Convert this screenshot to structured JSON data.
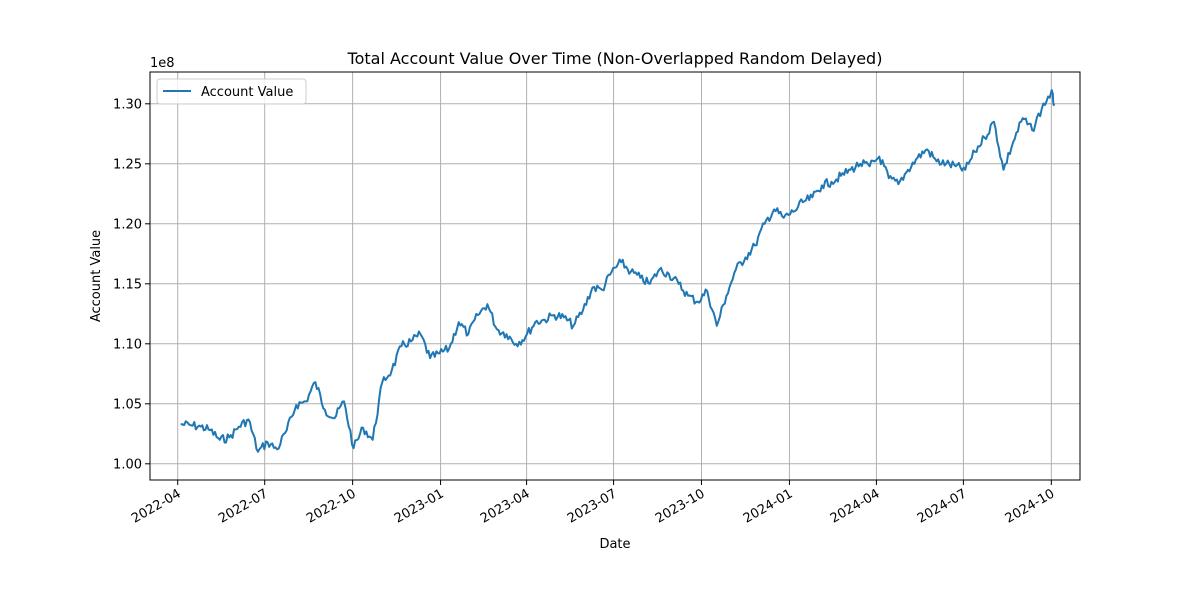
{
  "chart_data": {
    "type": "line",
    "title": "Total Account Value Over Time (Non-Overlapped Random Delayed)",
    "xlabel": "Date",
    "ylabel": "Account Value",
    "y_offset_label": "1e8",
    "y_scale_factor": 100000000,
    "ylim": [
      0.9865,
      1.3265
    ],
    "xlim": [
      "2022-03-03",
      "2024-10-31"
    ],
    "x_ticks": [
      "2022-04",
      "2022-07",
      "2022-10",
      "2023-01",
      "2023-04",
      "2023-07",
      "2023-10",
      "2024-01",
      "2024-04",
      "2024-07",
      "2024-10"
    ],
    "y_ticks": [
      "1.00",
      "1.05",
      "1.10",
      "1.15",
      "1.20",
      "1.25",
      "1.30"
    ],
    "grid": true,
    "legend_position": "top-left",
    "series": [
      {
        "name": "Account Value",
        "color": "#1f77b4",
        "x": [
          "2022-04-04",
          "2022-04-15",
          "2022-04-25",
          "2022-05-05",
          "2022-05-15",
          "2022-05-25",
          "2022-06-04",
          "2022-06-14",
          "2022-06-24",
          "2022-07-04",
          "2022-07-14",
          "2022-07-24",
          "2022-08-03",
          "2022-08-13",
          "2022-08-23",
          "2022-09-02",
          "2022-09-12",
          "2022-09-22",
          "2022-10-02",
          "2022-10-12",
          "2022-10-22",
          "2022-11-01",
          "2022-11-11",
          "2022-11-21",
          "2022-12-01",
          "2022-12-11",
          "2022-12-21",
          "2022-12-31",
          "2023-01-10",
          "2023-01-20",
          "2023-01-30",
          "2023-02-09",
          "2023-02-19",
          "2023-03-01",
          "2023-03-11",
          "2023-03-21",
          "2023-03-31",
          "2023-04-10",
          "2023-04-20",
          "2023-04-30",
          "2023-05-10",
          "2023-05-20",
          "2023-05-30",
          "2023-06-09",
          "2023-06-19",
          "2023-06-29",
          "2023-07-09",
          "2023-07-19",
          "2023-07-29",
          "2023-08-08",
          "2023-08-18",
          "2023-08-28",
          "2023-09-07",
          "2023-09-17",
          "2023-09-27",
          "2023-10-07",
          "2023-10-17",
          "2023-10-27",
          "2023-11-06",
          "2023-11-16",
          "2023-11-26",
          "2023-12-06",
          "2023-12-16",
          "2023-12-26",
          "2024-01-05",
          "2024-01-15",
          "2024-01-25",
          "2024-02-04",
          "2024-02-14",
          "2024-02-24",
          "2024-03-05",
          "2024-03-15",
          "2024-03-25",
          "2024-04-04",
          "2024-04-14",
          "2024-04-24",
          "2024-05-04",
          "2024-05-14",
          "2024-05-24",
          "2024-06-03",
          "2024-06-13",
          "2024-06-23",
          "2024-07-03",
          "2024-07-13",
          "2024-07-23",
          "2024-08-02",
          "2024-08-12",
          "2024-08-22",
          "2024-09-01",
          "2024-09-11",
          "2024-09-21",
          "2024-10-01",
          "2024-10-04"
        ],
        "values": [
          1.033,
          1.032,
          1.031,
          1.028,
          1.02,
          1.022,
          1.031,
          1.037,
          1.01,
          1.018,
          1.012,
          1.028,
          1.049,
          1.052,
          1.068,
          1.045,
          1.038,
          1.052,
          1.013,
          1.03,
          1.02,
          1.068,
          1.078,
          1.098,
          1.102,
          1.108,
          1.088,
          1.092,
          1.096,
          1.118,
          1.108,
          1.124,
          1.133,
          1.112,
          1.108,
          1.1,
          1.106,
          1.118,
          1.12,
          1.124,
          1.122,
          1.115,
          1.128,
          1.147,
          1.145,
          1.16,
          1.168,
          1.16,
          1.155,
          1.15,
          1.162,
          1.158,
          1.15,
          1.14,
          1.135,
          1.144,
          1.115,
          1.14,
          1.162,
          1.172,
          1.182,
          1.2,
          1.212,
          1.205,
          1.21,
          1.218,
          1.222,
          1.232,
          1.235,
          1.24,
          1.245,
          1.25,
          1.248,
          1.256,
          1.238,
          1.233,
          1.245,
          1.255,
          1.262,
          1.252,
          1.25,
          1.248,
          1.245,
          1.26,
          1.272,
          1.285,
          1.245,
          1.268,
          1.288,
          1.278,
          1.296,
          1.31,
          1.3
        ]
      }
    ]
  }
}
